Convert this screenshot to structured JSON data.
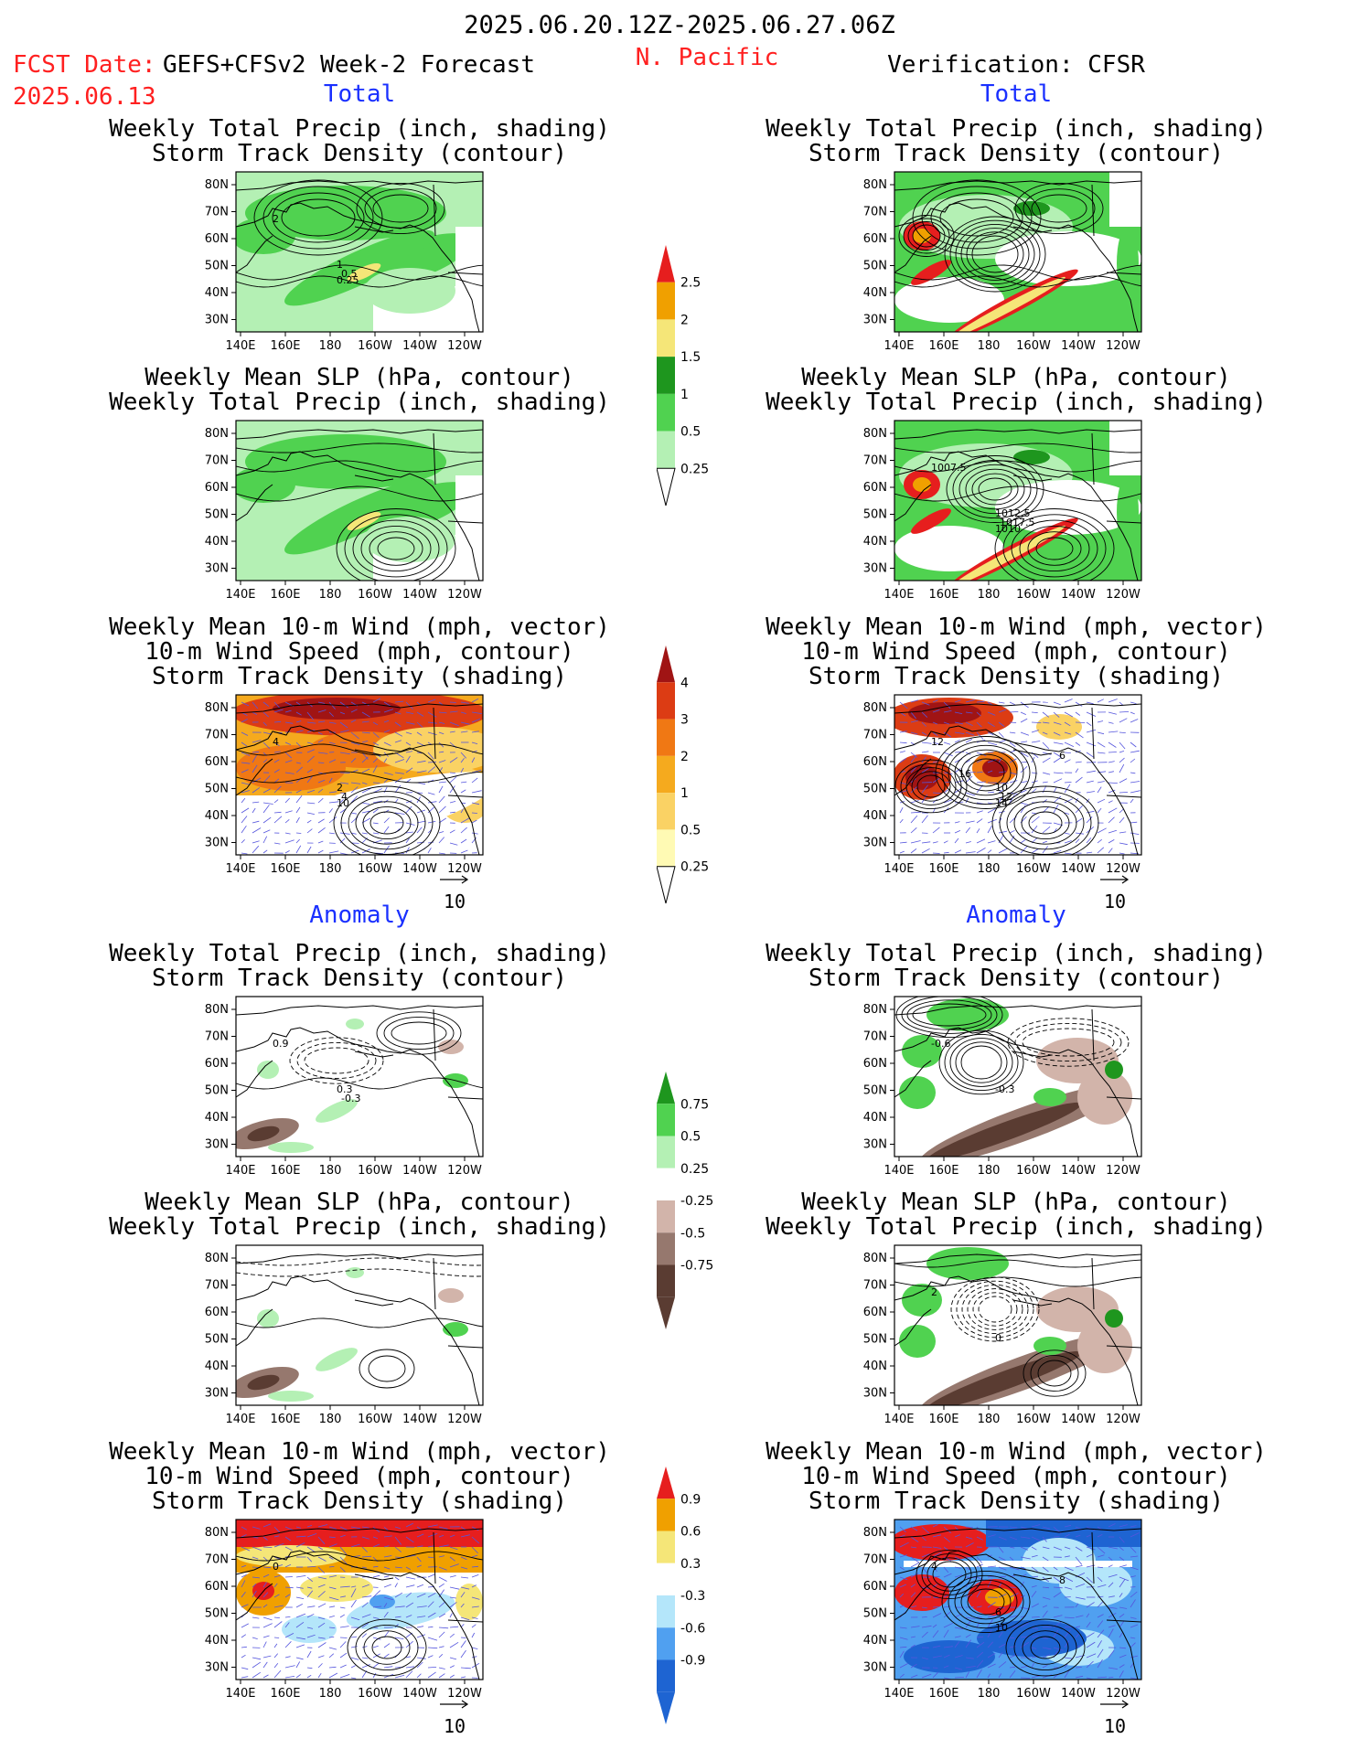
{
  "header": {
    "date_range": "2025.06.20.12Z-2025.06.27.06Z",
    "fcst_label": "FCST Date:",
    "fcst_date": "2025.06.13",
    "model": "GEFS+CFSv2 Week-2 Forecast",
    "region": "N. Pacific",
    "verification": "Verification: CFSR"
  },
  "sections": {
    "total": "Total",
    "anomaly": "Anomaly"
  },
  "panel_titles": {
    "precip_storm": [
      "Weekly Total Precip (inch, shading)",
      "Storm Track Density (contour)"
    ],
    "slp_precip": [
      "Weekly Mean SLP (hPa, contour)",
      "Weekly Total Precip (inch, shading)"
    ],
    "wind": [
      "Weekly Mean 10-m Wind (mph, vector)",
      "10-m Wind Speed (mph, contour)",
      "Storm Track Density (shading)"
    ]
  },
  "vector_ref": "10",
  "axis": {
    "lat_labels": [
      "80N",
      "70N",
      "60N",
      "50N",
      "40N",
      "30N"
    ],
    "lon_labels": [
      "140E",
      "160E",
      "180",
      "160W",
      "140W",
      "120W"
    ]
  },
  "contour_labels": {
    "fcst_total_precip": [
      "2",
      "1",
      "0.5",
      "0.25"
    ],
    "cfsr_total_slp": [
      "1007.5",
      "1012.5",
      "1017.5",
      "1010"
    ],
    "fcst_total_wind": [
      "4",
      "2",
      "4",
      "10"
    ],
    "cfsr_total_wind": [
      "12",
      "10",
      "12",
      "14",
      "6",
      "16"
    ],
    "fcst_anom_precip": [
      "0.9",
      "0.3",
      "-0.3"
    ],
    "cfsr_anom_precip": [
      "-0.6",
      "-0.3"
    ],
    "cfsr_anom_slp": [
      "2",
      "0"
    ],
    "fcst_anom_wind": [
      "0"
    ],
    "cfsr_anom_wind": [
      "4",
      "6",
      "2",
      "10",
      "8"
    ]
  },
  "colors": {
    "precip_total": [
      "#b4f0b4",
      "#50d250",
      "#1e961e",
      "#f5e678",
      "#f0a000",
      "#e61e1e"
    ],
    "storm_total": [
      "#fffab4",
      "#fad264",
      "#f5aa1e",
      "#f07814",
      "#dc3c14",
      "#a01414"
    ],
    "precip_anom": [
      "#5a3c32",
      "#96786e",
      "#d2b4aa",
      "#ffffff",
      "#b4f0b4",
      "#50d250",
      "#1e961e"
    ],
    "storm_anom": [
      "#1e64d2",
      "#50a0f0",
      "#b4e6fa",
      "#ffffff",
      "#f5e678",
      "#f0a000",
      "#e61e1e"
    ]
  },
  "chart_data": [
    {
      "type": "heatmap",
      "name": "precip_total_colorbar",
      "levels": [
        0.25,
        0.5,
        1,
        1.5,
        2,
        2.5
      ],
      "tick_labels": [
        "2.5",
        "2",
        "1.5",
        "1",
        "0.5",
        "0.25"
      ]
    },
    {
      "type": "heatmap",
      "name": "storm_total_colorbar",
      "levels": [
        0.25,
        0.5,
        1,
        2,
        3,
        4
      ],
      "tick_labels": [
        "4",
        "3",
        "2",
        "1",
        "0.5",
        "0.25"
      ]
    },
    {
      "type": "heatmap",
      "name": "precip_anom_colorbar",
      "levels": [
        -0.75,
        -0.5,
        -0.25,
        0.25,
        0.5,
        0.75
      ],
      "tick_labels": [
        "0.75",
        "0.5",
        "0.25",
        "-0.25",
        "-0.5",
        "-0.75"
      ]
    },
    {
      "type": "heatmap",
      "name": "storm_anom_colorbar",
      "levels": [
        -0.9,
        -0.6,
        -0.3,
        0.3,
        0.6,
        0.9
      ],
      "tick_labels": [
        "0.9",
        "0.6",
        "0.3",
        "-0.3",
        "-0.6",
        "-0.9"
      ]
    }
  ]
}
